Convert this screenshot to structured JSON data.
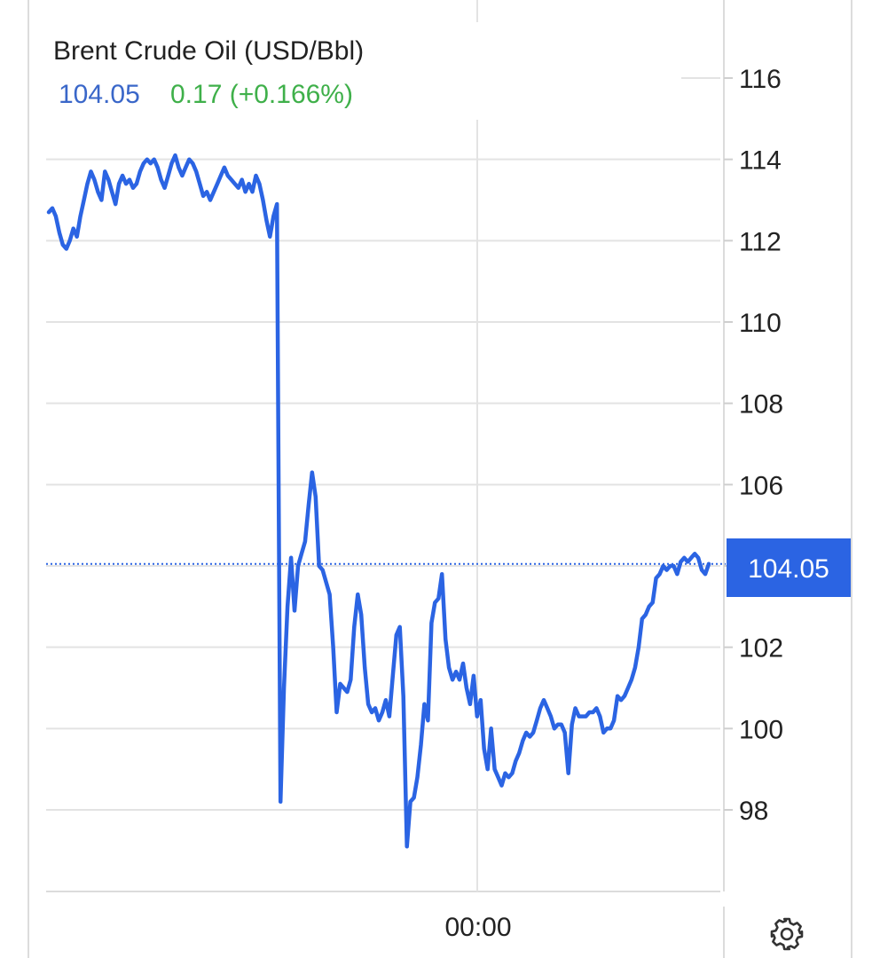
{
  "header": {
    "title": "Brent Crude Oil (USD/Bbl)",
    "price": "104.05",
    "change": "0.17 (+0.166%)"
  },
  "colors": {
    "line": "#2b64e3",
    "price": "#3a67c9",
    "change": "#3fb04a",
    "badge": "#2b64e3",
    "grid": "#e3e3e3"
  },
  "settings_icon": "gear-icon",
  "chart_data": {
    "type": "line",
    "title": "Brent Crude Oil (USD/Bbl)",
    "xlabel": "",
    "ylabel": "",
    "x_ticks": [
      "00:00"
    ],
    "y_ticks": [
      98,
      100,
      102,
      104,
      106,
      108,
      110,
      112,
      114,
      116
    ],
    "ylim": [
      96,
      117
    ],
    "grid": true,
    "last_value": 104.05,
    "last_label": "104.05",
    "series": [
      {
        "values": [
          112.7,
          112.8,
          112.6,
          112.2,
          111.9,
          111.8,
          112.0,
          112.3,
          112.1,
          112.6,
          113.0,
          113.4,
          113.7,
          113.5,
          113.2,
          113.0,
          113.7,
          113.5,
          113.2,
          112.9,
          113.4,
          113.6,
          113.4,
          113.5,
          113.3,
          113.4,
          113.7,
          113.9,
          114.0,
          113.9,
          114.0,
          113.8,
          113.5,
          113.3,
          113.6,
          113.9,
          114.1,
          113.8,
          113.6,
          113.8,
          114.0,
          113.9,
          113.7,
          113.4,
          113.1,
          113.2,
          113.0,
          113.2,
          113.4,
          113.6,
          113.8,
          113.6,
          113.5,
          113.4,
          113.3,
          113.5,
          113.2,
          113.4,
          113.2,
          113.6,
          113.4,
          113.0,
          112.5,
          112.1,
          112.6,
          112.9,
          98.2,
          101.0,
          103.0,
          104.2,
          102.9,
          104.0,
          104.3,
          104.6,
          105.5,
          106.3,
          105.7,
          104.0,
          103.9,
          103.6,
          103.3,
          102.0,
          100.4,
          101.1,
          101.0,
          100.9,
          101.2,
          102.5,
          103.3,
          102.8,
          101.5,
          100.6,
          100.4,
          100.5,
          100.2,
          100.4,
          100.7,
          100.3,
          101.3,
          102.3,
          102.5,
          100.8,
          97.1,
          98.2,
          98.3,
          98.8,
          99.6,
          100.6,
          100.2,
          102.6,
          103.1,
          103.2,
          103.8,
          102.2,
          101.5,
          101.2,
          101.4,
          101.2,
          101.6,
          101.0,
          100.6,
          101.3,
          100.3,
          100.7,
          99.5,
          99.0,
          100.0,
          99.0,
          98.8,
          98.6,
          98.9,
          98.8,
          98.9,
          99.2,
          99.4,
          99.7,
          99.9,
          99.8,
          99.9,
          100.2,
          100.5,
          100.7,
          100.5,
          100.3,
          100.0,
          100.1,
          100.1,
          99.9,
          98.9,
          100.1,
          100.5,
          100.3,
          100.3,
          100.3,
          100.4,
          100.4,
          100.5,
          100.3,
          99.9,
          100.0,
          100.0,
          100.2,
          100.8,
          100.7,
          100.8,
          101.0,
          101.2,
          101.5,
          102.0,
          102.7,
          102.8,
          103.0,
          103.1,
          103.7,
          103.8,
          104.0,
          103.9,
          104.0,
          104.0,
          103.8,
          104.1,
          104.2,
          104.1,
          104.2,
          104.3,
          104.2,
          103.9,
          103.8,
          104.05
        ]
      }
    ]
  }
}
